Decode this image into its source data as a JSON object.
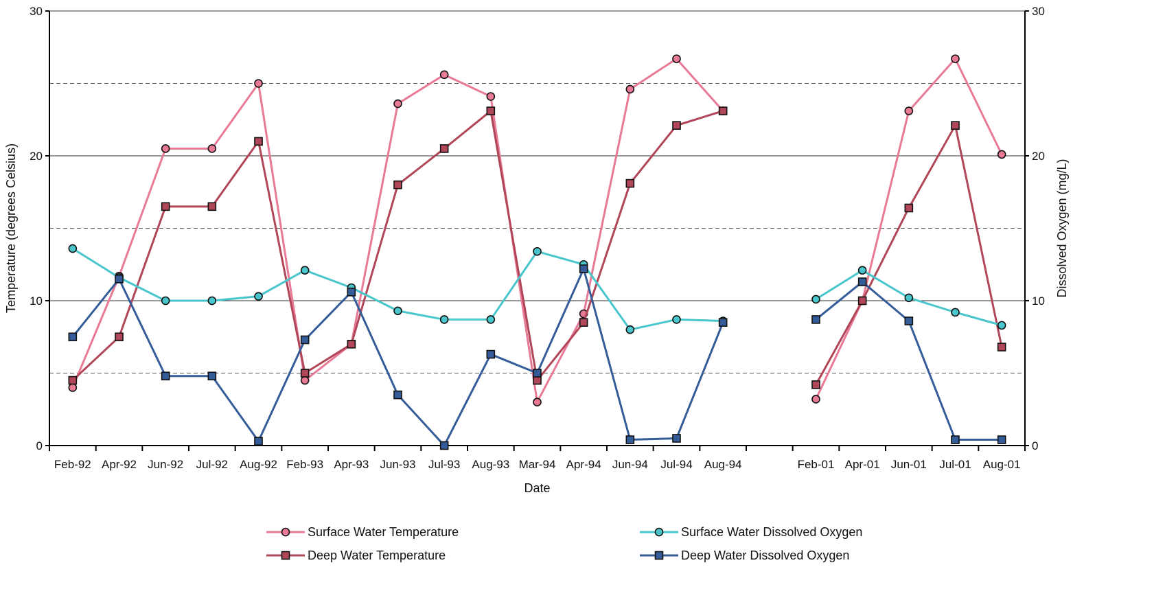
{
  "chart_data": {
    "type": "line",
    "xlabel": "Date",
    "ylabel_left": "Temperature (degrees Celsius)",
    "ylabel_right": "Dissolved Oxygen (mg/L)",
    "ylim_left": [
      0,
      30
    ],
    "ylim_right": [
      0,
      30
    ],
    "yticks_left": [
      "0",
      "10",
      "20",
      "30"
    ],
    "yticks_right": [
      "0",
      "10",
      "20",
      "30"
    ],
    "grid": "horizontal, solid at 10 and 20, dashed at 5, 15 and 25",
    "legend_position": "bottom",
    "categories": [
      "Feb-92",
      "Apr-92",
      "Jun-92",
      "Jul-92",
      "Aug-92",
      "Feb-93",
      "Apr-93",
      "Jun-93",
      "Jul-93",
      "Aug-93",
      "Mar-94",
      "Apr-94",
      "Jun-94",
      "Jul-94",
      "Aug-94",
      "",
      "Feb-01",
      "Apr-01",
      "Jun-01",
      "Jul-01",
      "Aug-01"
    ],
    "series": [
      {
        "name": "Surface Water Temperature",
        "axis": "left",
        "color": "#e87a96",
        "marker": "circle",
        "values": [
          4.0,
          11.7,
          20.5,
          20.5,
          25.0,
          4.5,
          7.0,
          23.6,
          25.6,
          24.1,
          3.0,
          9.1,
          24.6,
          26.7,
          23.1,
          null,
          3.2,
          10.0,
          23.1,
          26.7,
          20.1
        ]
      },
      {
        "name": "Deep Water Temperature",
        "axis": "left",
        "color": "#b04658",
        "marker": "square",
        "values": [
          4.5,
          7.5,
          16.5,
          16.5,
          21.0,
          5.0,
          7.0,
          18.0,
          20.5,
          23.1,
          4.5,
          8.5,
          18.1,
          22.1,
          23.1,
          null,
          4.2,
          10.0,
          16.4,
          22.1,
          6.8
        ]
      },
      {
        "name": "Surface Water Dissolved Oxygen",
        "axis": "right",
        "color": "#49c6cc",
        "marker": "circle",
        "values": [
          13.6,
          11.6,
          10.0,
          10.0,
          10.3,
          12.1,
          10.9,
          9.3,
          8.7,
          8.7,
          13.4,
          12.5,
          8.0,
          8.7,
          8.6,
          null,
          10.1,
          12.1,
          10.2,
          9.2,
          8.3
        ]
      },
      {
        "name": "Deep Water Dissolved Oxygen",
        "axis": "right",
        "color": "#345c98",
        "marker": "square",
        "values": [
          7.5,
          11.5,
          4.8,
          4.8,
          0.3,
          7.3,
          10.6,
          3.5,
          0.0,
          6.3,
          5.0,
          12.2,
          0.4,
          0.5,
          8.5,
          null,
          8.7,
          11.3,
          8.6,
          0.4,
          0.4
        ]
      }
    ]
  }
}
